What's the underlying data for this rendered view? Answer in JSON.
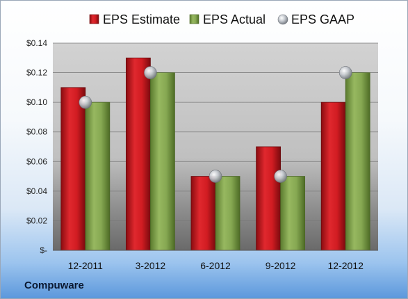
{
  "chart_data": {
    "type": "bar",
    "title": "",
    "xlabel": "",
    "ylabel": "",
    "categories": [
      "12-2011",
      "3-2012",
      "6-2012",
      "9-2012",
      "12-2012"
    ],
    "series": [
      {
        "name": "EPS Estimate",
        "kind": "bar",
        "color": "#c0161c",
        "values": [
          0.11,
          0.13,
          0.05,
          0.07,
          0.1
        ]
      },
      {
        "name": "EPS Actual",
        "kind": "bar",
        "color": "#7ea04a",
        "values": [
          0.1,
          0.12,
          0.05,
          0.05,
          0.12
        ]
      },
      {
        "name": "EPS GAAP",
        "kind": "marker",
        "color": "#b8bcc2",
        "values": [
          0.1,
          0.12,
          0.05,
          0.05,
          0.12
        ]
      }
    ],
    "ylim": [
      0,
      0.14
    ],
    "yticks": [
      0,
      0.02,
      0.04,
      0.06,
      0.08,
      0.1,
      0.12,
      0.14
    ],
    "ytick_labels": [
      "$-",
      "$0.02",
      "$0.04",
      "$0.06",
      "$0.08",
      "$0.10",
      "$0.12",
      "$0.14"
    ],
    "grid": true,
    "legend_position": "top-center"
  },
  "footer": {
    "company": "Compuware"
  }
}
